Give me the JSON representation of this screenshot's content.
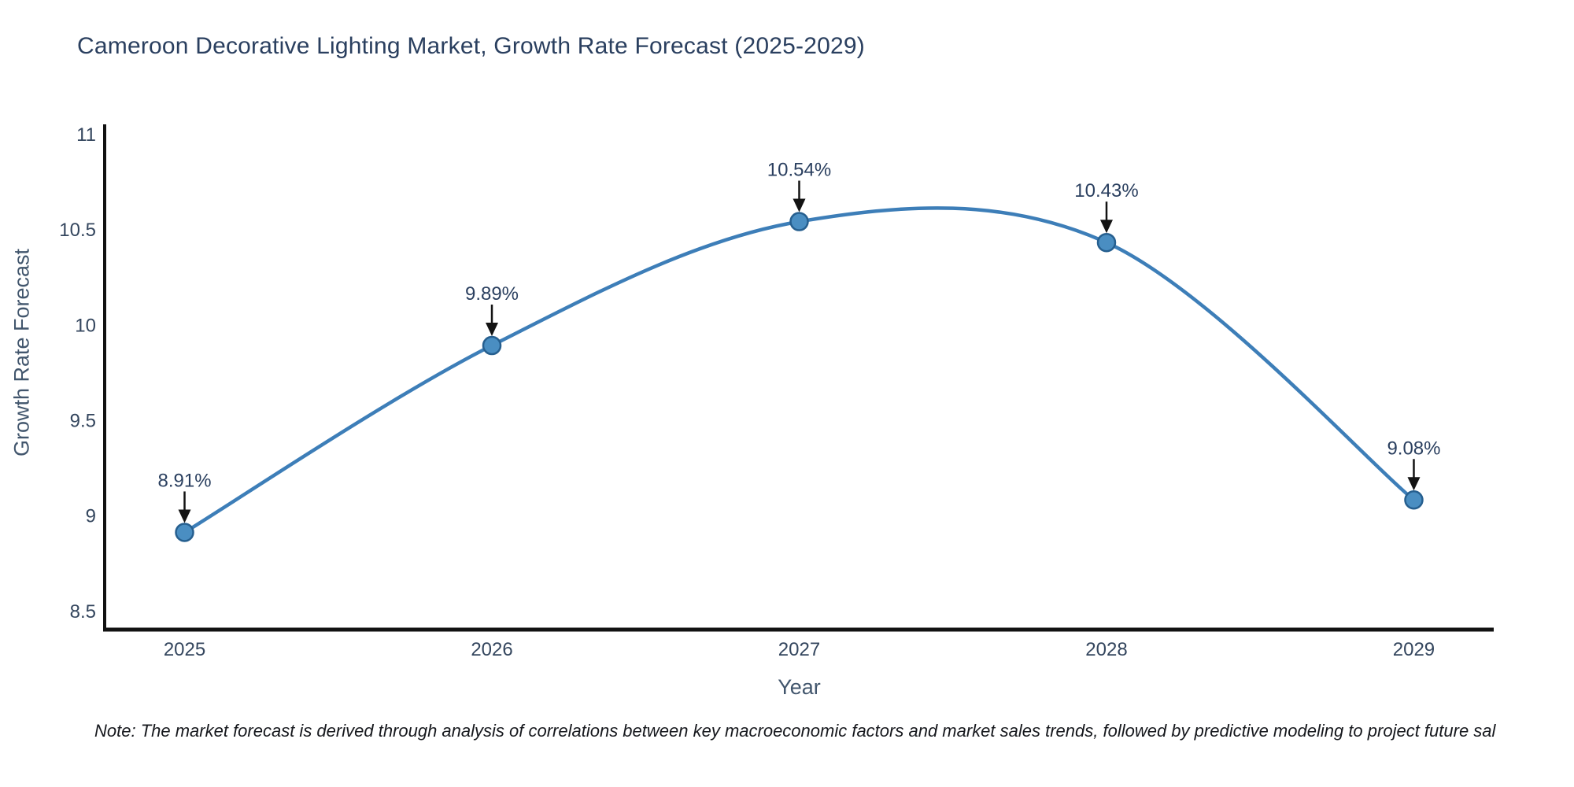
{
  "title": "Cameroon Decorative Lighting Market, Growth Rate Forecast (2025-2029)",
  "note": "Note: The market forecast is derived through analysis of correlations between key macroeconomic factors and market sales trends, followed by predictive modeling to project future sal",
  "chart_data": {
    "type": "line",
    "title": "Cameroon Decorative Lighting Market, Growth Rate Forecast (2025-2029)",
    "xlabel": "Year",
    "ylabel": "Growth Rate Forecast",
    "categories": [
      2025,
      2026,
      2027,
      2028,
      2029
    ],
    "values": [
      8.91,
      9.89,
      10.54,
      10.43,
      9.08
    ],
    "point_labels": [
      "8.91%",
      "9.89%",
      "10.54%",
      "10.43%",
      "9.08%"
    ],
    "x_ticks": [
      "2025",
      "2026",
      "2027",
      "2028",
      "2029"
    ],
    "y_ticks": [
      "8.5",
      "9",
      "9.5",
      "10",
      "10.5",
      "11"
    ],
    "y_tick_values": [
      8.5,
      9,
      9.5,
      10,
      10.5,
      11
    ],
    "xlim": [
      2024.74,
      2029.26
    ],
    "ylim": [
      8.4,
      11.05
    ],
    "grid": false,
    "legend": "none",
    "line_shape": "spline",
    "annotation_style": "down-arrow",
    "colors": {
      "line": "#3d7eb8",
      "marker_fill": "#4a8ec2",
      "marker_stroke": "#265f8f",
      "axis_line": "#121212",
      "tick_text": "#34465e",
      "annotation_text": "#2a3f5f",
      "annotation_arrow": "#131313",
      "title_text": "#2a3f5f"
    }
  }
}
